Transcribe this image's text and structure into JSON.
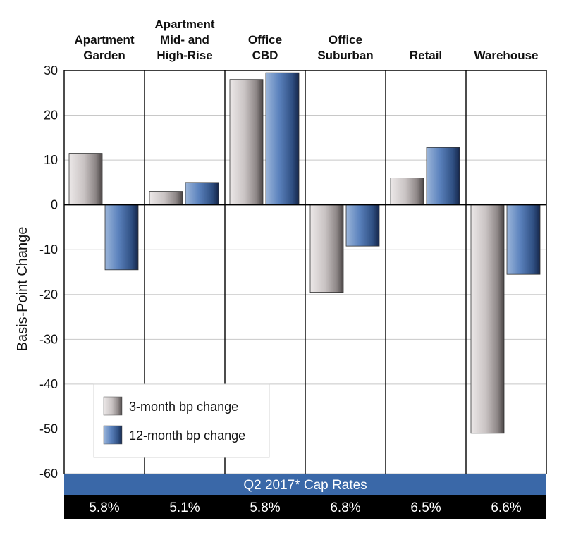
{
  "chart_data": {
    "type": "bar",
    "ylabel": "Basis-Point Change",
    "ylim": [
      -60,
      30
    ],
    "yticks": [
      30,
      20,
      10,
      0,
      -10,
      -20,
      -30,
      -40,
      -50,
      -60
    ],
    "grid": true,
    "legend_placement": "lower-left",
    "categories": [
      [
        "Apartment",
        "Garden"
      ],
      [
        "Apartment",
        "Mid- and",
        "High-Rise"
      ],
      [
        "Office",
        "CBD"
      ],
      [
        "Office",
        "Suburban"
      ],
      [
        "Retail"
      ],
      [
        "Warehouse"
      ]
    ],
    "series": [
      {
        "name": "3-month bp change",
        "color": "#a09a9a",
        "values": [
          11.5,
          3,
          28,
          -19.5,
          6,
          -51
        ]
      },
      {
        "name": "12-month bp change",
        "color": "#3d67a3",
        "values": [
          -14.5,
          5,
          29.5,
          -9.2,
          12.8,
          -15.5
        ]
      }
    ],
    "band_label": "Q2 2017* Cap Rates",
    "band_color": "#3a68a8",
    "cap_rates": [
      "5.8%",
      "5.1%",
      "5.8%",
      "6.8%",
      "6.5%",
      "6.6%"
    ]
  }
}
